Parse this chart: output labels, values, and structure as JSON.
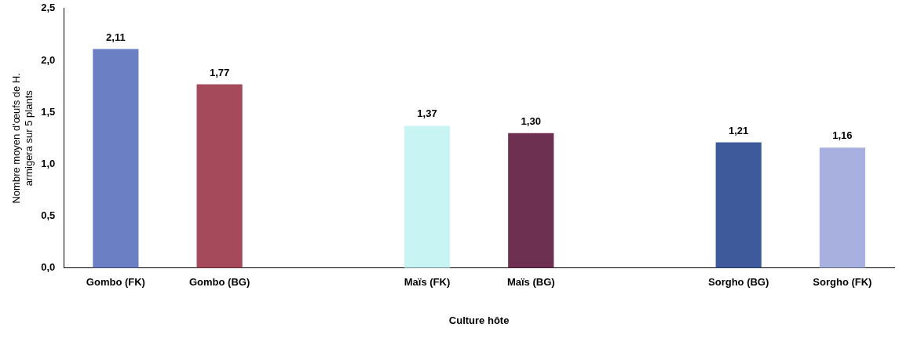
{
  "chart_data": {
    "type": "bar",
    "xlabel": "Culture hôte",
    "ylabel": "Nombre moyen d'œufs de H. armigera sur 5 plants",
    "categories": [
      "Gombo (FK)",
      "Gombo (BG)",
      null,
      "Maïs (FK)",
      "Maïs (BG)",
      null,
      "Sorgho (BG)",
      "Sorgho (FK)"
    ],
    "values": [
      2.11,
      1.77,
      null,
      1.37,
      1.3,
      null,
      1.21,
      1.16
    ],
    "colors": [
      "#6b7fc4",
      "#a54a5a",
      null,
      "#c8f4f4",
      "#6e3050",
      null,
      "#3f5a9a",
      "#a8b0e0"
    ],
    "value_labels": [
      "2,11",
      "1,77",
      null,
      "1,37",
      "1,30",
      null,
      "1,21",
      "1,16"
    ],
    "ylim": [
      0,
      2.5
    ],
    "yticks": [
      {
        "value": 0,
        "label": "0,0"
      },
      {
        "value": 0.5,
        "label": "0,5"
      },
      {
        "value": 1,
        "label": "1,0"
      },
      {
        "value": 1.5,
        "label": "1,5"
      },
      {
        "value": 2,
        "label": "2,0"
      },
      {
        "value": 2.5,
        "label": "2,5"
      }
    ],
    "grid": false,
    "legend": false
  }
}
